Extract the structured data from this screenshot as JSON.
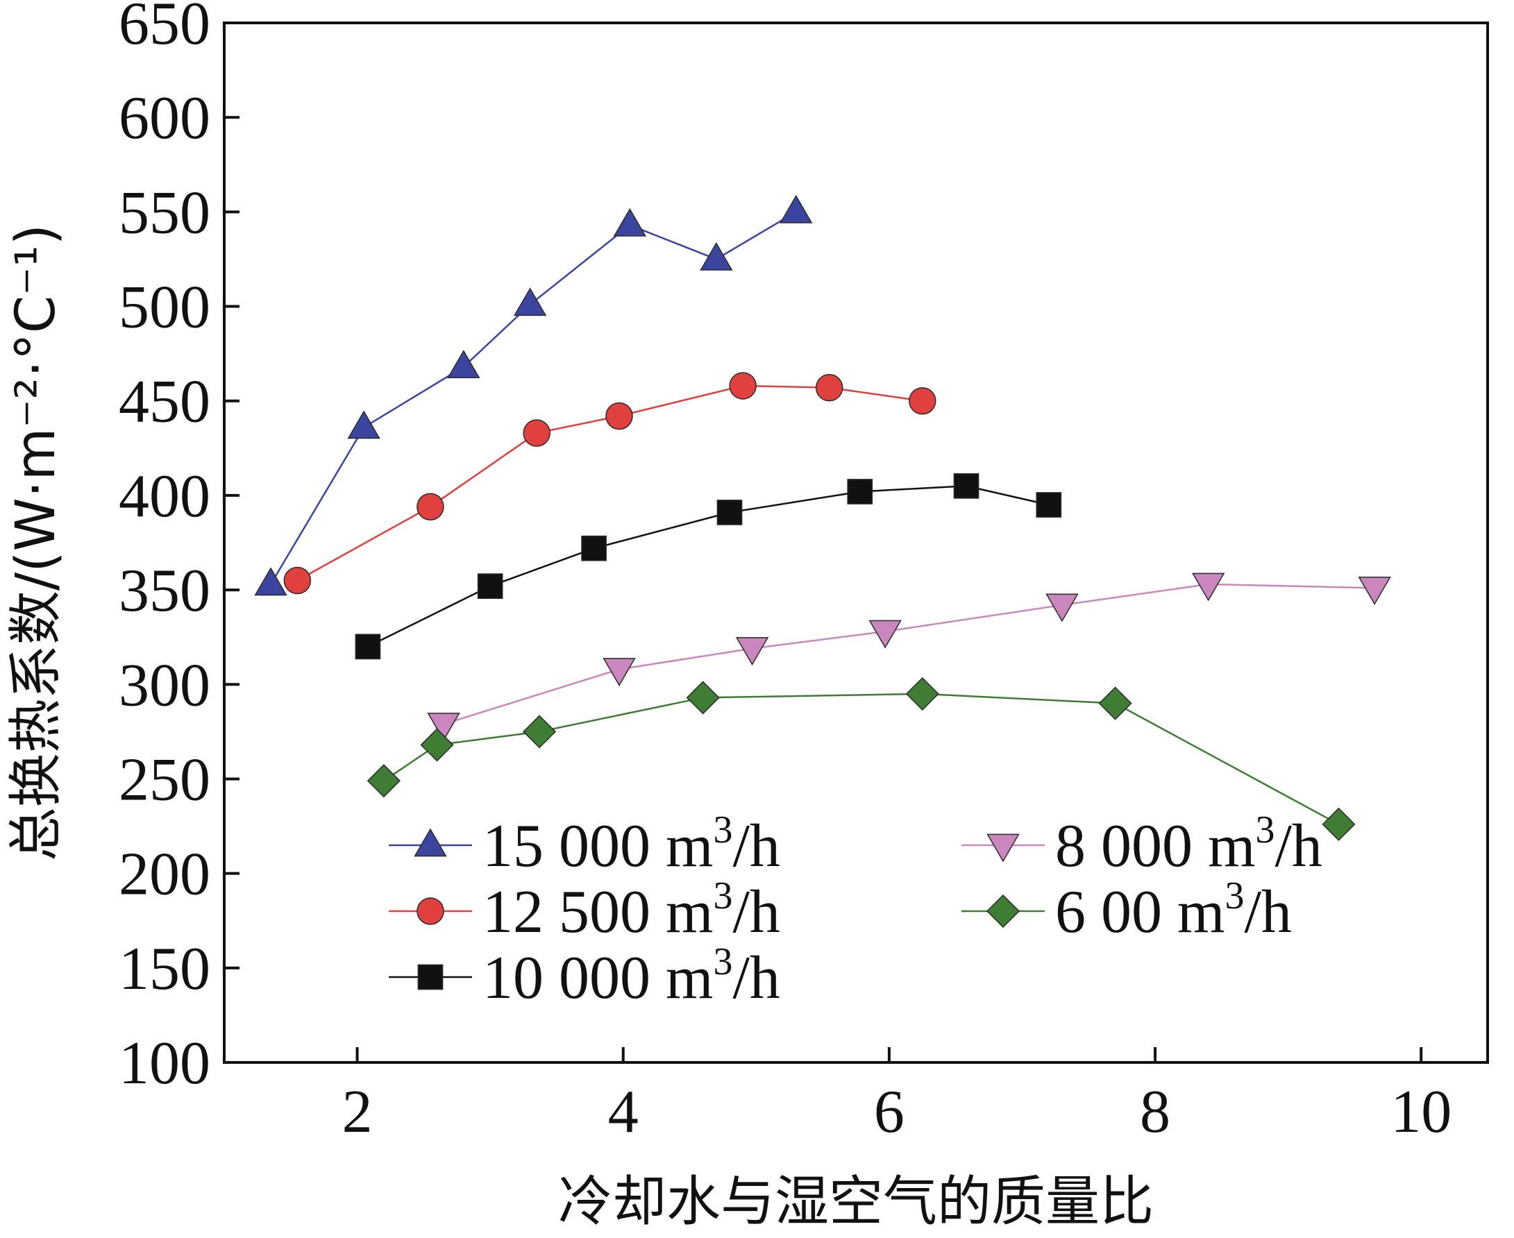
{
  "chart_data": {
    "type": "line",
    "title": "",
    "xlabel": "冷却水与湿空气的质量比",
    "ylabel": "总换热系数/(W·m⁻²·°C⁻¹)",
    "xlim": [
      1,
      10.5
    ],
    "ylim": [
      100,
      650
    ],
    "xticks": [
      2,
      4,
      6,
      8,
      10
    ],
    "yticks": [
      100,
      150,
      200,
      250,
      300,
      350,
      400,
      450,
      500,
      550,
      600,
      650
    ],
    "grid": false,
    "legend": "bottom-left",
    "series": [
      {
        "name": "15 000 m³/h",
        "legend_main": "15 000 m",
        "legend_sup": "3",
        "legend_tail": "/h",
        "color": "#3b45a0",
        "fill": "#3b45a0",
        "marker": "triangle-up",
        "x": [
          1.35,
          2.05,
          2.8,
          3.3,
          4.05,
          4.7,
          5.3
        ],
        "y": [
          353,
          436,
          468,
          501,
          543,
          525,
          550
        ]
      },
      {
        "name": "12 500 m³/h",
        "legend_main": "12 500 m",
        "legend_sup": "3",
        "legend_tail": "/h",
        "color": "#e0403e",
        "fill": "#e0403e",
        "marker": "circle",
        "x": [
          1.55,
          2.55,
          3.35,
          3.97,
          4.9,
          5.55,
          6.25
        ],
        "y": [
          355,
          394,
          433,
          442,
          458,
          457,
          450
        ]
      },
      {
        "name": "10 000 m³/h",
        "legend_main": "10 000 m",
        "legend_sup": "3",
        "legend_tail": "/h",
        "color": "#111111",
        "fill": "#111111",
        "marker": "square",
        "x": [
          2.08,
          3.0,
          3.78,
          4.8,
          5.78,
          6.58,
          7.2
        ],
        "y": [
          320,
          352,
          372,
          391,
          402,
          405,
          395
        ]
      },
      {
        "name": "8 000 m³/h",
        "legend_main": "8 000 m",
        "legend_sup": "3",
        "legend_tail": "/h",
        "color": "#c987bd",
        "fill": "#c987bd",
        "marker": "triangle-down",
        "x": [
          2.65,
          3.97,
          4.97,
          5.97,
          7.3,
          8.4,
          9.65
        ],
        "y": [
          279,
          308,
          319,
          328,
          342,
          353,
          351
        ]
      },
      {
        "name": "6 00 m³/h",
        "legend_main": "6 00 m",
        "legend_sup": "3",
        "legend_tail": "/h",
        "color": "#3f7d35",
        "fill": "#3f7d35",
        "marker": "diamond",
        "x": [
          2.2,
          2.6,
          3.37,
          4.6,
          6.25,
          7.7,
          9.38
        ],
        "y": [
          249,
          268,
          275,
          293,
          295,
          290,
          226
        ]
      }
    ]
  }
}
